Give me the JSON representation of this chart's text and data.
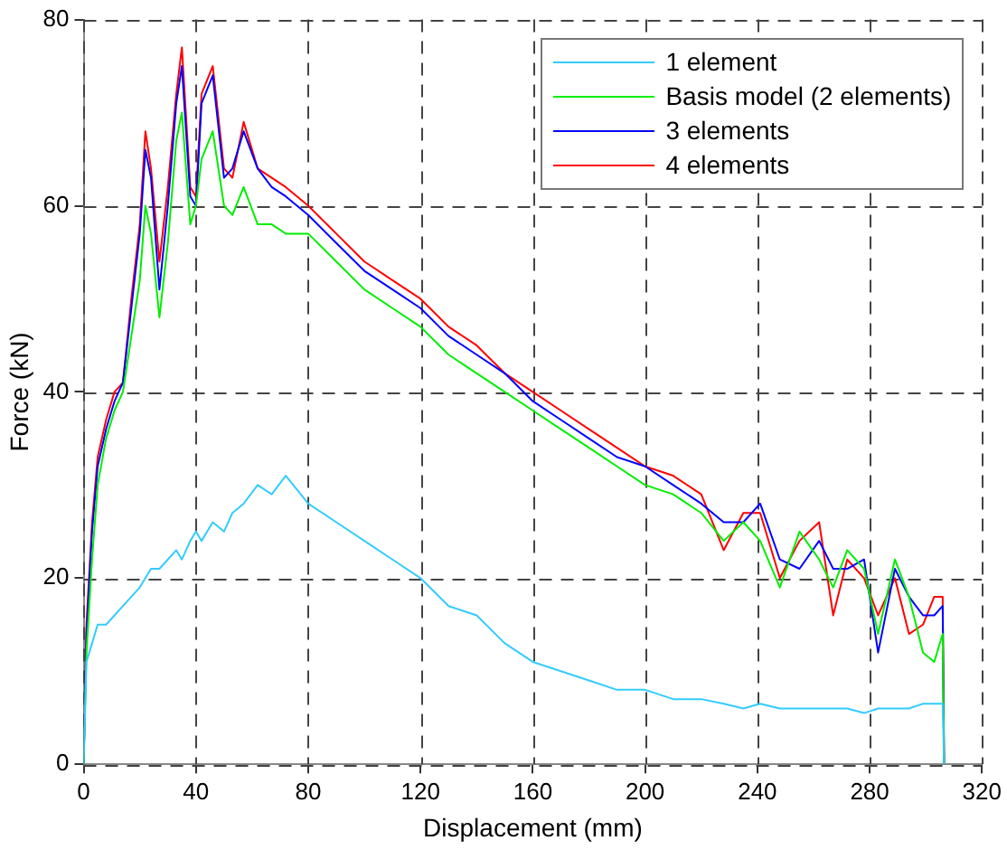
{
  "chart_data": {
    "type": "line",
    "xlabel": "Displacement (mm)",
    "ylabel": "Force (kN)",
    "x": [
      0,
      1,
      3,
      5,
      8,
      11,
      14,
      17,
      20,
      22,
      24,
      27,
      30,
      33,
      35,
      38,
      40,
      42,
      46,
      50,
      53,
      57,
      62,
      67,
      72,
      80,
      90,
      100,
      110,
      120,
      130,
      140,
      150,
      160,
      170,
      180,
      190,
      200,
      210,
      220,
      228,
      235,
      241,
      248,
      255,
      262,
      267,
      272,
      278,
      283,
      289,
      294,
      299,
      303,
      306,
      306.5
    ],
    "series": [
      {
        "name": "1 element",
        "color": "#33ccff",
        "values": [
          0,
          11,
          13,
          15,
          15,
          16,
          17,
          18,
          19,
          20,
          21,
          21,
          22,
          23,
          22,
          24,
          25,
          24,
          26,
          25,
          27,
          28,
          30,
          29,
          31,
          28,
          26,
          24,
          22,
          20,
          17,
          16,
          13,
          11,
          10,
          9,
          8,
          8,
          7,
          7,
          6.5,
          6,
          6.5,
          6,
          6,
          6,
          6,
          6,
          5.5,
          6,
          6,
          6,
          6.5,
          6.5,
          6.5,
          0
        ]
      },
      {
        "name": "Basis model (2 elements)",
        "color": "#00ee00",
        "values": [
          0,
          12,
          22,
          30,
          35,
          38,
          40,
          46,
          52,
          60,
          57,
          48,
          56,
          67,
          70,
          58,
          60,
          65,
          68,
          60,
          59,
          62,
          58,
          58,
          57,
          57,
          54,
          51,
          49,
          47,
          44,
          42,
          40,
          38,
          36,
          34,
          32,
          30,
          29,
          27,
          24,
          26,
          24,
          19,
          25,
          22,
          19,
          23,
          21,
          14,
          22,
          18,
          12,
          11,
          14,
          0
        ]
      },
      {
        "name": "3 elements",
        "color": "#0000ff",
        "values": [
          0,
          14,
          25,
          32,
          36,
          39,
          41,
          49,
          57,
          66,
          63,
          51,
          60,
          71,
          75,
          61,
          60,
          71,
          74,
          63,
          64,
          68,
          64,
          62,
          61,
          59,
          56,
          53,
          51,
          49,
          46,
          44,
          42,
          39,
          37,
          35,
          33,
          32,
          30,
          28,
          26,
          26,
          28,
          22,
          21,
          24,
          21,
          21,
          22,
          12,
          21,
          18,
          16,
          16,
          17,
          0
        ]
      },
      {
        "name": "4 elements",
        "color": "#ff0000",
        "values": [
          0,
          15,
          26,
          33,
          37,
          40,
          41,
          50,
          58,
          68,
          64,
          54,
          62,
          72,
          77,
          62,
          61,
          72,
          75,
          64,
          63,
          69,
          64,
          63,
          62,
          60,
          57,
          54,
          52,
          50,
          47,
          45,
          42,
          40,
          38,
          36,
          34,
          32,
          31,
          29,
          23,
          27,
          27,
          20,
          24,
          26,
          16,
          22,
          20,
          16,
          20,
          14,
          15,
          18,
          18,
          0
        ]
      }
    ],
    "xlim": [
      0,
      320
    ],
    "xticks": [
      0,
      40,
      80,
      120,
      160,
      200,
      240,
      280,
      320
    ],
    "ylim": [
      0,
      80
    ],
    "yticks": [
      0,
      20,
      40,
      60,
      80
    ],
    "grid": true,
    "legend": "top right",
    "marker": "none",
    "line_style": "solid"
  }
}
